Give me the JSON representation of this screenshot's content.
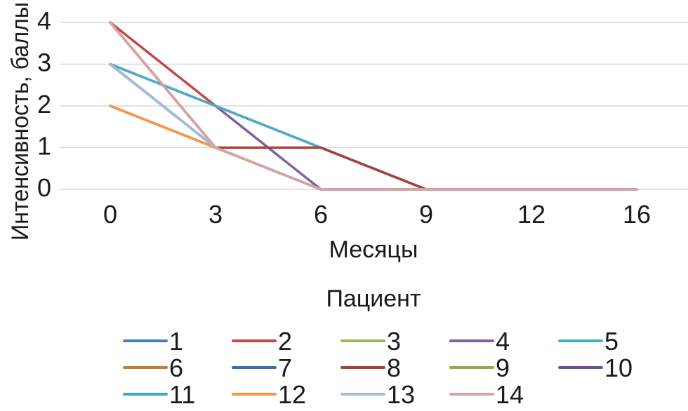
{
  "chart_data": {
    "type": "line",
    "xlabel": "Месяцы",
    "ylabel": "Интенсивность, баллы",
    "categories": [
      "0",
      "3",
      "6",
      "9",
      "12",
      "16"
    ],
    "ylim": [
      0,
      4
    ],
    "yticks": [
      0,
      1,
      2,
      3,
      4
    ],
    "grid": "horizontal",
    "legend": {
      "title": "Пациент",
      "placement": "bottom"
    },
    "series": [
      {
        "name": "1",
        "color": "#4A7EBB",
        "values": [
          3,
          1,
          0,
          0,
          0,
          0
        ]
      },
      {
        "name": "2",
        "color": "#BE4B48",
        "values": [
          4,
          2,
          1,
          0,
          0,
          0
        ]
      },
      {
        "name": "3",
        "color": "#9BBB59",
        "values": [
          2,
          1,
          0,
          0,
          0,
          0
        ]
      },
      {
        "name": "4",
        "color": "#7E62A1",
        "values": [
          3,
          2,
          0,
          0,
          0,
          0
        ]
      },
      {
        "name": "5",
        "color": "#4BACC6",
        "values": [
          3,
          2,
          1,
          0,
          0,
          0
        ]
      },
      {
        "name": "6",
        "color": "#BE7D3C",
        "values": [
          2,
          1,
          0,
          0,
          0,
          0
        ]
      },
      {
        "name": "7",
        "color": "#3F6DAA",
        "values": [
          3,
          1,
          0,
          0,
          0,
          0
        ]
      },
      {
        "name": "8",
        "color": "#A8403D",
        "values": [
          4,
          1,
          1,
          0,
          0,
          0
        ]
      },
      {
        "name": "9",
        "color": "#8DAA4F",
        "values": [
          3,
          1,
          0,
          0,
          0,
          0
        ]
      },
      {
        "name": "10",
        "color": "#6F5591",
        "values": [
          4,
          1,
          0,
          0,
          0,
          0
        ]
      },
      {
        "name": "11",
        "color": "#3DA5C1",
        "values": [
          3,
          1,
          0,
          0,
          0,
          0
        ]
      },
      {
        "name": "12",
        "color": "#F79646",
        "values": [
          2,
          1,
          0,
          0,
          0,
          0
        ]
      },
      {
        "name": "13",
        "color": "#A5BBDB",
        "values": [
          3,
          1,
          0,
          0,
          0,
          0
        ]
      },
      {
        "name": "14",
        "color": "#D9A3A2",
        "values": [
          4,
          1,
          0,
          0,
          0,
          0
        ]
      }
    ]
  }
}
